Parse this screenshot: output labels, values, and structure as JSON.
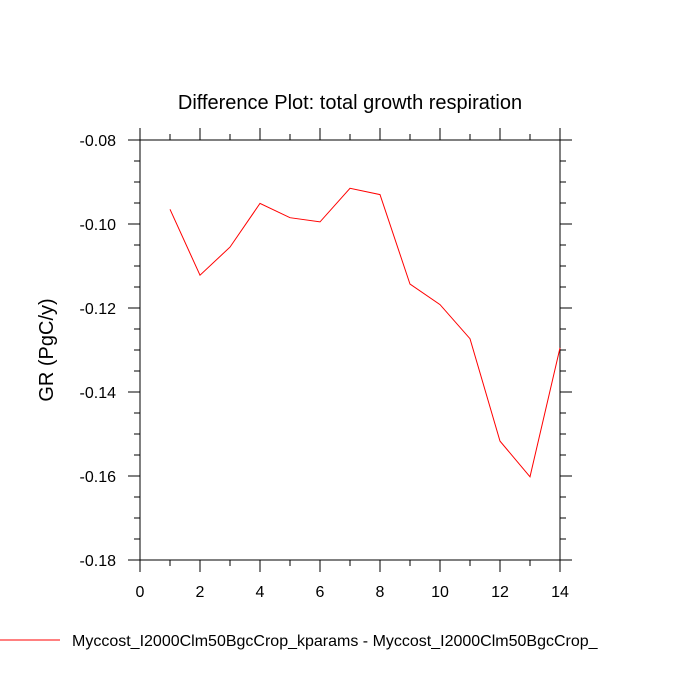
{
  "chart_data": {
    "type": "line",
    "title": "Difference Plot: total growth respiration",
    "xlabel": "",
    "ylabel": "GR  (PgC/y)",
    "xlim": [
      0,
      14
    ],
    "ylim": [
      -0.18,
      -0.08
    ],
    "x_ticks": [
      0,
      2,
      4,
      6,
      8,
      10,
      12,
      14
    ],
    "y_ticks": [
      -0.18,
      -0.16,
      -0.14,
      -0.12,
      -0.1,
      -0.08
    ],
    "x_tick_labels": [
      "0",
      "2",
      "4",
      "6",
      "8",
      "10",
      "12",
      "14"
    ],
    "y_tick_labels": [
      "-0.18",
      "-0.16",
      "-0.14",
      "-0.12",
      "-0.10",
      "-0.08"
    ],
    "x_minor_step": 1,
    "y_minor_step": 0.005,
    "grid": false,
    "legend_position": "bottom",
    "series": [
      {
        "name": "Myccost_I2000Clm50BgcCrop_kparams - Myccost_I2000Clm50BgcCrop_",
        "color": "#ff0000",
        "x": [
          1,
          2,
          3,
          4,
          5,
          6,
          7,
          8,
          9,
          10,
          11,
          12,
          13,
          14
        ],
        "values": [
          -0.0965,
          -0.1122,
          -0.1055,
          -0.0951,
          -0.0985,
          -0.0995,
          -0.0915,
          -0.093,
          -0.1143,
          -0.1192,
          -0.1273,
          -0.1517,
          -0.1602,
          -0.1295
        ]
      }
    ]
  }
}
